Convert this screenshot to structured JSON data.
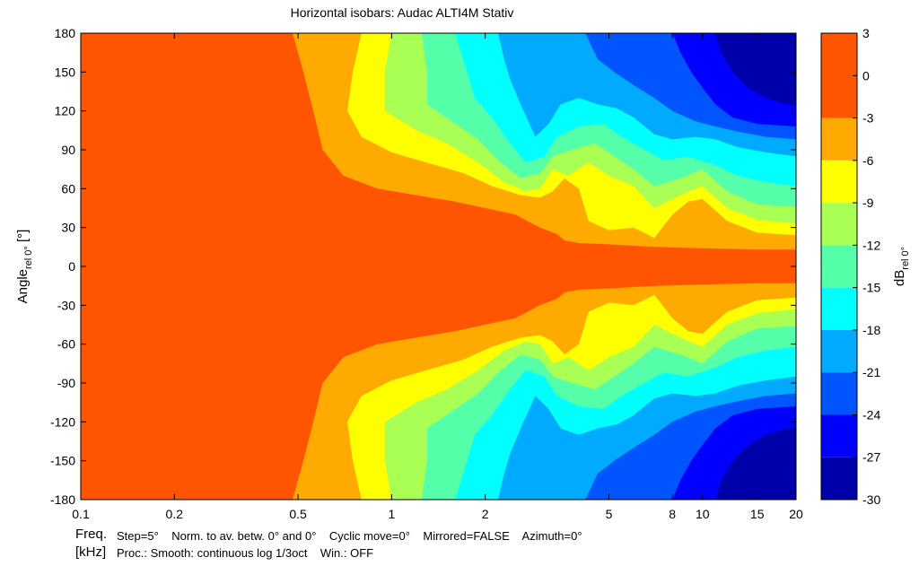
{
  "chart_data": {
    "type": "heatmap",
    "title": "Horizontal isobars: Audac  ALTI4M  Stativ",
    "xlabel": "Freq.",
    "xunit": "[kHz]",
    "ylabel_main": "Angle",
    "ylabel_sub": "rel 0°",
    "ylabel_unit": " [°]",
    "x_scale": "log",
    "xlim": [
      0.1,
      20
    ],
    "ylim": [
      -180,
      180
    ],
    "x_ticks": [
      0.1,
      0.2,
      0.5,
      1,
      2,
      5,
      8,
      10,
      15,
      20
    ],
    "x_tick_labels": [
      "0.1",
      "0.2",
      "0.5",
      "1",
      "2",
      "5",
      "8",
      "10",
      "15",
      "20"
    ],
    "y_ticks": [
      180,
      150,
      120,
      90,
      60,
      30,
      0,
      -30,
      -60,
      -90,
      -120,
      -150,
      -180
    ],
    "y_tick_labels": [
      "180",
      "150",
      "120",
      "90",
      "60",
      "30",
      "0",
      "-30",
      "-60",
      "-90",
      "-120",
      "-150",
      "-180"
    ],
    "colorbar": {
      "label_main": "dB",
      "label_sub": "rel 0°",
      "range": [
        -30,
        3
      ],
      "ticks": [
        3,
        0,
        -3,
        -6,
        -9,
        -12,
        -15,
        -18,
        -21,
        -24,
        -27,
        -30
      ],
      "tick_labels": [
        "3",
        "0",
        "-3",
        "-6",
        "-9",
        "-12",
        "-15",
        "-18",
        "-21",
        "-24",
        "-27",
        "-30"
      ],
      "bands": [
        {
          "from": -3,
          "to": 3,
          "color": "#ff5500"
        },
        {
          "from": -6,
          "to": -3,
          "color": "#ffaa00"
        },
        {
          "from": -9,
          "to": -6,
          "color": "#ffff00"
        },
        {
          "from": -12,
          "to": -9,
          "color": "#aaff55"
        },
        {
          "from": -15,
          "to": -12,
          "color": "#55ffaa"
        },
        {
          "from": -18,
          "to": -15,
          "color": "#00ffff"
        },
        {
          "from": -21,
          "to": -18,
          "color": "#00aaff"
        },
        {
          "from": -24,
          "to": -21,
          "color": "#0055ff"
        },
        {
          "from": -27,
          "to": -24,
          "color": "#0000ff"
        },
        {
          "from": -30,
          "to": -27,
          "color": "#0000aa"
        }
      ]
    },
    "contour_bands": [
      {
        "level": -6,
        "color": "#ffaa00",
        "points": [
          [
            0.48,
            180
          ],
          [
            0.52,
            150
          ],
          [
            0.56,
            120
          ],
          [
            0.6,
            90
          ],
          [
            0.7,
            70
          ],
          [
            0.9,
            60
          ],
          [
            1.2,
            55
          ],
          [
            1.6,
            50
          ],
          [
            2.0,
            45
          ],
          [
            2.5,
            40
          ],
          [
            3.0,
            30
          ],
          [
            3.4,
            25
          ],
          [
            3.6,
            20
          ],
          [
            4.0,
            18
          ],
          [
            5.0,
            17
          ],
          [
            7.0,
            15
          ],
          [
            10,
            14
          ],
          [
            15,
            13
          ],
          [
            20,
            13
          ]
        ]
      },
      {
        "level": -9,
        "color": "#ffff00",
        "points": [
          [
            0.8,
            180
          ],
          [
            0.75,
            150
          ],
          [
            0.72,
            120
          ],
          [
            0.8,
            100
          ],
          [
            1.0,
            88
          ],
          [
            1.3,
            80
          ],
          [
            1.7,
            72
          ],
          [
            2.1,
            62
          ],
          [
            2.6,
            55
          ],
          [
            3.0,
            53
          ],
          [
            3.3,
            58
          ],
          [
            3.6,
            68
          ],
          [
            4.0,
            60
          ],
          [
            4.3,
            35
          ],
          [
            5.0,
            28
          ],
          [
            6.0,
            30
          ],
          [
            7.0,
            22
          ],
          [
            8.0,
            40
          ],
          [
            9.0,
            50
          ],
          [
            10,
            52
          ],
          [
            12,
            35
          ],
          [
            15,
            26
          ],
          [
            20,
            24
          ]
        ]
      },
      {
        "level": -12,
        "color": "#aaff55",
        "points": [
          [
            1.0,
            180
          ],
          [
            0.95,
            150
          ],
          [
            0.95,
            120
          ],
          [
            1.2,
            105
          ],
          [
            1.5,
            95
          ],
          [
            1.9,
            80
          ],
          [
            2.3,
            65
          ],
          [
            2.7,
            58
          ],
          [
            3.0,
            60
          ],
          [
            3.3,
            75
          ],
          [
            3.7,
            70
          ],
          [
            4.3,
            80
          ],
          [
            5.0,
            70
          ],
          [
            6.0,
            62
          ],
          [
            7.0,
            45
          ],
          [
            8.5,
            55
          ],
          [
            10,
            62
          ],
          [
            12,
            45
          ],
          [
            15,
            36
          ],
          [
            20,
            33
          ]
        ]
      },
      {
        "level": -15,
        "color": "#55ffaa",
        "points": [
          [
            1.25,
            180
          ],
          [
            1.3,
            150
          ],
          [
            1.3,
            125
          ],
          [
            1.6,
            110
          ],
          [
            1.9,
            98
          ],
          [
            2.2,
            82
          ],
          [
            2.6,
            68
          ],
          [
            3.0,
            72
          ],
          [
            3.3,
            85
          ],
          [
            3.8,
            90
          ],
          [
            4.5,
            95
          ],
          [
            5.2,
            85
          ],
          [
            6.0,
            75
          ],
          [
            7.0,
            62
          ],
          [
            8.5,
            68
          ],
          [
            10,
            75
          ],
          [
            12,
            58
          ],
          [
            15,
            48
          ],
          [
            20,
            46
          ]
        ]
      },
      {
        "level": -18,
        "color": "#00ffff",
        "points": [
          [
            1.6,
            180
          ],
          [
            1.75,
            150
          ],
          [
            1.85,
            130
          ],
          [
            2.1,
            115
          ],
          [
            2.4,
            95
          ],
          [
            2.7,
            80
          ],
          [
            3.1,
            85
          ],
          [
            3.4,
            100
          ],
          [
            4.0,
            108
          ],
          [
            4.8,
            110
          ],
          [
            5.5,
            100
          ],
          [
            6.5,
            90
          ],
          [
            7.5,
            82
          ],
          [
            9.0,
            85
          ],
          [
            11,
            78
          ],
          [
            13,
            70
          ],
          [
            16,
            65
          ],
          [
            20,
            62
          ]
        ]
      },
      {
        "level": -21,
        "color": "#00aaff",
        "points": [
          [
            2.2,
            180
          ],
          [
            2.3,
            160
          ],
          [
            2.4,
            145
          ],
          [
            2.6,
            125
          ],
          [
            2.9,
            100
          ],
          [
            3.2,
            110
          ],
          [
            3.5,
            125
          ],
          [
            4.0,
            130
          ],
          [
            4.6,
            125
          ],
          [
            5.3,
            122
          ],
          [
            6.0,
            115
          ],
          [
            7.0,
            102
          ],
          [
            8.0,
            98
          ],
          [
            9.5,
            100
          ],
          [
            11,
            98
          ],
          [
            13,
            92
          ],
          [
            16,
            88
          ],
          [
            20,
            85
          ]
        ]
      },
      {
        "level": -24,
        "color": "#0055ff",
        "points": [
          [
            4.2,
            180
          ],
          [
            4.6,
            160
          ],
          [
            5.2,
            150
          ],
          [
            6.0,
            140
          ],
          [
            7.0,
            130
          ],
          [
            8.0,
            120
          ],
          [
            9.5,
            112
          ],
          [
            11,
            108
          ],
          [
            13,
            104
          ],
          [
            16,
            100
          ],
          [
            20,
            98
          ]
        ]
      },
      {
        "level": -27,
        "color": "#0000ff",
        "points": [
          [
            8.0,
            180
          ],
          [
            8.5,
            165
          ],
          [
            9.2,
            150
          ],
          [
            10,
            138
          ],
          [
            11,
            125
          ],
          [
            12.5,
            115
          ],
          [
            15,
            110
          ],
          [
            20,
            108
          ]
        ]
      },
      {
        "level": -30,
        "color": "#0000aa",
        "points": [
          [
            11,
            180
          ],
          [
            11.5,
            165
          ],
          [
            12.5,
            150
          ],
          [
            14,
            138
          ],
          [
            16,
            130
          ],
          [
            18,
            126
          ],
          [
            20,
            124
          ]
        ]
      }
    ]
  },
  "footer": {
    "freq_label": "Freq.",
    "khz_label": "[kHz]",
    "info_line_1": "Step=5°    Norm. to av. betw. 0° and 0°    Cyclic move=0°    Mirrored=FALSE    Azimuth=0°",
    "info_line_2": "Proc.: Smooth: continuous log 1/3oct    Win.: OFF"
  }
}
